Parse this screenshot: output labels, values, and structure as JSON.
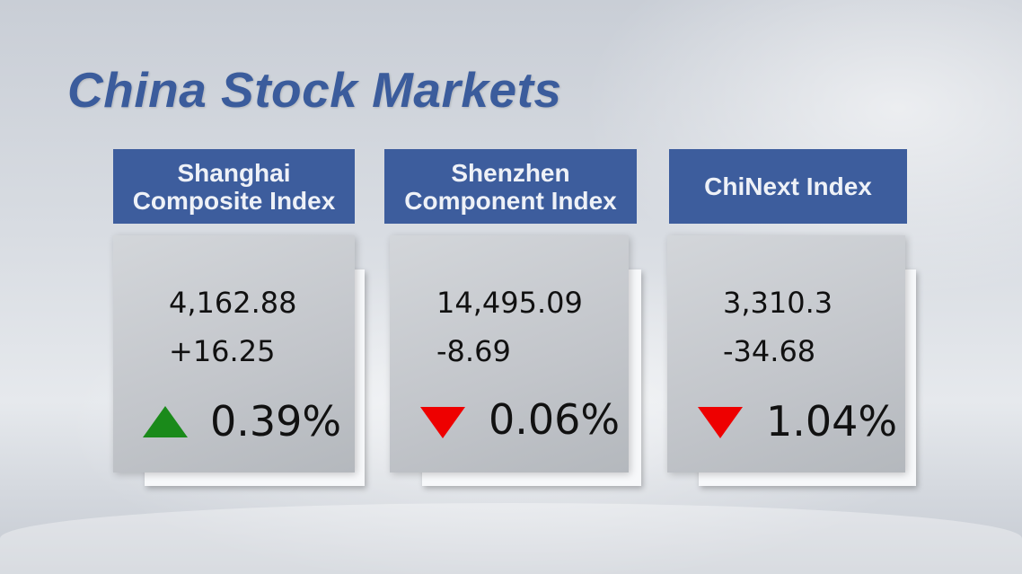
{
  "title": "China Stock Markets",
  "colors": {
    "header": "#3d5d9d",
    "up": "#1a8a1a",
    "down": "#ee0000"
  },
  "indices": [
    {
      "name": "Shanghai Composite Index",
      "value": "4,162.88",
      "change": "+16.25",
      "percent": "0.39%",
      "direction": "up",
      "icon": "triangle-up-icon"
    },
    {
      "name": "Shenzhen Component Index",
      "value": "14,495.09",
      "change": "-8.69",
      "percent": "0.06%",
      "direction": "down",
      "icon": "triangle-down-icon"
    },
    {
      "name": "ChiNext Index",
      "value": "3,310.3",
      "change": "-34.68",
      "percent": "1.04%",
      "direction": "down",
      "icon": "triangle-down-icon"
    }
  ]
}
